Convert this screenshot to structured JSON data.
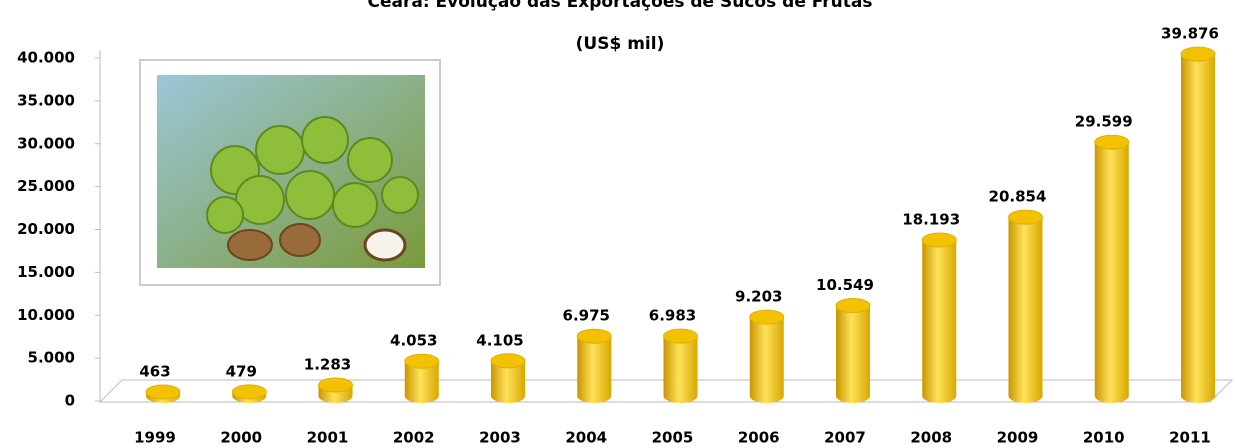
{
  "chart_data": {
    "type": "bar",
    "title": "Ceará: Evolução das Exportações de Sucos de Frutas",
    "subtitle": "(US$ mil)",
    "categories": [
      "1999",
      "2000",
      "2001",
      "2002",
      "2003",
      "2004",
      "2005",
      "2006",
      "2007",
      "2008",
      "2009",
      "2010",
      "2011"
    ],
    "values": [
      463,
      479,
      1283,
      4053,
      4105,
      6975,
      6983,
      9203,
      10549,
      18193,
      20854,
      29599,
      39876
    ],
    "value_labels": [
      "463",
      "479",
      "1.283",
      "4.053",
      "4.105",
      "6.975",
      "6.983",
      "9.203",
      "10.549",
      "18.193",
      "20.854",
      "29.599",
      "39.876"
    ],
    "color": "#f2c200",
    "ylim": [
      0,
      40000
    ],
    "yticks": [
      0,
      {
        "value": 5000,
        "label": "5.000"
      },
      {
        "value": 10000,
        "label": "10.000"
      },
      {
        "value": 15000,
        "label": "15.000"
      },
      {
        "value": 20000,
        "label": "20.000"
      },
      {
        "value": 25000,
        "label": "25.000"
      },
      {
        "value": 30000,
        "label": "30.000"
      },
      {
        "value": 35000,
        "label": "35.000"
      },
      {
        "value": 40000,
        "label": "40.000"
      }
    ]
  }
}
